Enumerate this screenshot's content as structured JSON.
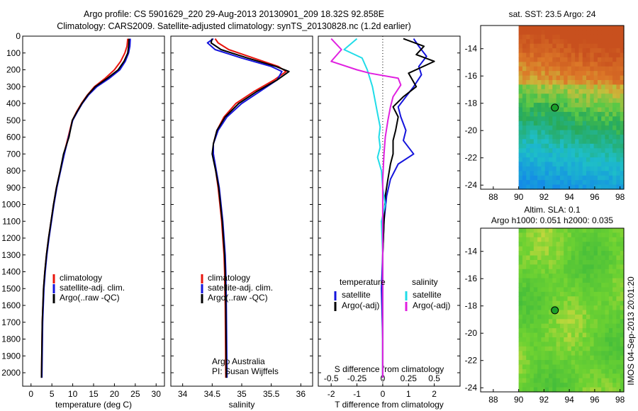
{
  "header": {
    "line1": "Argo profile: CS 5901629_220 29-Aug-2013 20130901_209 18.32S 92.858E",
    "line2": "Climatology: CARS2009. Satellite-adjusted climatology: synTS_20130828.nc (1.2d earlier)"
  },
  "colors": {
    "climatology": "#e8140c",
    "satellite": "#1414dc",
    "argo": "#000000",
    "cyan": "#20dce8",
    "magenta": "#e020e0",
    "marker": "#1a9e2a"
  },
  "chart_data": [
    {
      "type": "line",
      "id": "temperature",
      "xlabel": "temperature (deg C)",
      "xlim": [
        -2,
        32
      ],
      "xticks": [
        0,
        5,
        10,
        15,
        20,
        25,
        30
      ],
      "ylim": [
        0,
        2080
      ],
      "yticks": [
        0,
        100,
        200,
        300,
        400,
        500,
        600,
        700,
        800,
        900,
        1000,
        1100,
        1200,
        1300,
        1400,
        1500,
        1600,
        1700,
        1800,
        1900,
        2000
      ],
      "legend": [
        "climatology",
        "satellite-adj. clim.",
        "Argo(..raw -QC)"
      ],
      "series": [
        {
          "name": "climatology",
          "color_key": "climatology",
          "x": [
            23.2,
            23.0,
            22.5,
            21.5,
            20.0,
            17.8,
            15.2,
            13.5,
            12.1,
            10.9,
            9.9,
            8.9,
            7.9,
            7.0,
            6.1,
            5.4,
            4.8,
            4.2,
            3.7,
            3.3,
            3.0,
            2.7,
            2.5
          ],
          "y": [
            15,
            60,
            100,
            150,
            200,
            250,
            300,
            350,
            400,
            450,
            500,
            600,
            700,
            800,
            900,
            1000,
            1100,
            1200,
            1300,
            1400,
            1500,
            1700,
            2030
          ]
        },
        {
          "name": "satellite-adj. clim.",
          "color_key": "satellite",
          "x": [
            23.8,
            23.7,
            23.4,
            22.6,
            21.3,
            18.8,
            15.8,
            13.8,
            12.3,
            11.1,
            10.0,
            9.0,
            8.0,
            7.1,
            6.2,
            5.5,
            4.9,
            4.3,
            3.8,
            3.4,
            3.1,
            2.8,
            2.6
          ],
          "y": [
            15,
            60,
            100,
            150,
            200,
            250,
            300,
            350,
            400,
            450,
            500,
            600,
            700,
            800,
            900,
            1000,
            1100,
            1200,
            1300,
            1400,
            1500,
            1700,
            2030
          ]
        },
        {
          "name": "Argo(..raw -QC)",
          "color_key": "argo",
          "x": [
            23.5,
            23.4,
            23.2,
            22.3,
            20.9,
            18.3,
            15.4,
            13.6,
            12.2,
            11.0,
            9.9,
            9.1,
            7.8,
            7.0,
            6.1,
            5.4,
            4.8,
            4.2,
            3.7,
            3.3,
            3.0,
            2.7,
            2.5
          ],
          "y": [
            15,
            60,
            100,
            150,
            200,
            250,
            300,
            350,
            400,
            450,
            500,
            600,
            700,
            800,
            900,
            1000,
            1100,
            1200,
            1300,
            1400,
            1500,
            1700,
            2030
          ]
        }
      ]
    },
    {
      "type": "line",
      "id": "salinity",
      "xlabel": "salinity",
      "xlim": [
        33.8,
        36.2
      ],
      "xticks": [
        34,
        34.5,
        35,
        35.5,
        36
      ],
      "ylim": [
        0,
        2080
      ],
      "legend": [
        "climatology",
        "satellite-adj. clim.",
        "Argo(..raw -QC)"
      ],
      "annotation": [
        "Argo Australia",
        "PI: Susan Wijffels"
      ],
      "series": [
        {
          "name": "climatology",
          "color_key": "climatology",
          "x": [
            34.55,
            34.6,
            34.78,
            35.2,
            35.62,
            35.75,
            35.55,
            35.2,
            34.9,
            34.7,
            34.58,
            34.52,
            34.52,
            34.56,
            34.6,
            34.63,
            34.66,
            34.68,
            34.7,
            34.71,
            34.72,
            34.73
          ],
          "y": [
            15,
            40,
            80,
            130,
            180,
            210,
            260,
            330,
            400,
            480,
            560,
            640,
            700,
            800,
            900,
            1000,
            1100,
            1200,
            1300,
            1400,
            1600,
            2030
          ]
        },
        {
          "name": "satellite-adj. clim.",
          "color_key": "satellite",
          "x": [
            34.52,
            34.42,
            34.55,
            35.0,
            35.5,
            35.68,
            35.6,
            35.3,
            35.0,
            34.75,
            34.6,
            34.52,
            34.52,
            34.57,
            34.62,
            34.65,
            34.68,
            34.7,
            34.72,
            34.73,
            34.74,
            34.75
          ],
          "y": [
            15,
            40,
            80,
            130,
            180,
            210,
            260,
            330,
            400,
            480,
            560,
            640,
            700,
            800,
            900,
            1000,
            1100,
            1200,
            1300,
            1400,
            1600,
            2030
          ]
        },
        {
          "name": "Argo(..raw -QC)",
          "color_key": "argo",
          "x": [
            34.5,
            34.48,
            34.65,
            35.1,
            35.58,
            35.8,
            35.6,
            35.25,
            34.95,
            34.72,
            34.58,
            34.52,
            34.5,
            34.56,
            34.61,
            34.64,
            34.67,
            34.69,
            34.71,
            34.72,
            34.73,
            34.74
          ],
          "y": [
            15,
            40,
            80,
            130,
            180,
            210,
            260,
            330,
            400,
            480,
            560,
            640,
            700,
            800,
            900,
            1000,
            1100,
            1200,
            1300,
            1400,
            1600,
            2030
          ]
        }
      ]
    },
    {
      "type": "line",
      "id": "differences",
      "xlabel": "T difference from climatology",
      "xlabel_top": "S difference from climatology",
      "xlim": [
        -2.5,
        3.0
      ],
      "xticks": [
        -2,
        -1,
        0,
        1,
        2
      ],
      "top_ticks": [
        -0.5,
        -0.25,
        0,
        0.25,
        0.5
      ],
      "ylim": [
        0,
        2080
      ],
      "legend": {
        "left_title": "temperature",
        "right_title": "salinity",
        "left": [
          "satellite",
          "Argo(-adj)"
        ],
        "right": [
          "satellite",
          "Argo(-adj)"
        ]
      },
      "series": [
        {
          "name": "T satellite",
          "color_key": "satellite",
          "x": [
            1.2,
            1.4,
            1.7,
            1.4,
            1.5,
            1.2,
            0.9,
            0.6,
            0.7,
            0.9,
            0.8,
            1.2,
            0.6,
            0.3,
            0.15,
            0.05,
            0,
            -0.05,
            0,
            0
          ],
          "y": [
            15,
            60,
            120,
            180,
            230,
            300,
            360,
            420,
            480,
            560,
            620,
            700,
            760,
            850,
            950,
            1100,
            1300,
            1500,
            1800,
            2030
          ]
        },
        {
          "name": "T Argo(-adj)",
          "color_key": "argo",
          "x": [
            0.8,
            1.6,
            1.3,
            2.0,
            1.0,
            1.3,
            0.8,
            0.4,
            0.6,
            0.5,
            0.4,
            0.4,
            0.3,
            0.2,
            0.1,
            0.05,
            0,
            0,
            0,
            0
          ],
          "y": [
            15,
            60,
            110,
            150,
            220,
            300,
            360,
            420,
            480,
            560,
            620,
            700,
            760,
            850,
            950,
            1100,
            1300,
            1500,
            1800,
            2030
          ]
        },
        {
          "name": "S satellite",
          "color_key": "cyan",
          "x": [
            -1.0,
            -1.5,
            -0.8,
            -0.6,
            -0.4,
            -0.3,
            -0.2,
            -0.1,
            -0.15,
            -0.1,
            -0.2,
            -0.05,
            0.0,
            0.1,
            -0.05,
            0,
            0,
            0
          ],
          "y": [
            15,
            80,
            130,
            200,
            300,
            380,
            460,
            540,
            600,
            660,
            720,
            800,
            900,
            1000,
            1100,
            1300,
            1600,
            2030
          ]
        },
        {
          "name": "S Argo(-adj)",
          "color_key": "magenta",
          "x": [
            -2.0,
            -1.6,
            -2.0,
            -1.0,
            -0.5,
            0.6,
            0.7,
            0.4,
            0.3,
            0.2,
            0.1,
            0.05,
            0,
            0,
            0
          ],
          "y": [
            15,
            80,
            150,
            200,
            220,
            250,
            290,
            360,
            420,
            500,
            600,
            700,
            850,
            1000,
            2030
          ]
        }
      ]
    },
    {
      "type": "heatmap",
      "id": "sst_map",
      "title": "sat. SST: 23.5 Argo: 24",
      "xlim": [
        87,
        98.3
      ],
      "ylim": [
        -24.3,
        -12.3
      ],
      "xticks": [
        88,
        90,
        92,
        94,
        96,
        98
      ],
      "yticks": [
        -14,
        -16,
        -18,
        -20,
        -22,
        -24
      ],
      "data_lon": [
        90,
        98.3
      ],
      "argo_position": [
        92.858,
        -18.32
      ]
    },
    {
      "type": "heatmap",
      "id": "sla_map",
      "title": "Altim. SLA: 0.1",
      "subtitle": "Argo h1000: 0.051 h2000: 0.035",
      "xlim": [
        87,
        98.3
      ],
      "ylim": [
        -24.3,
        -12.3
      ],
      "xticks": [
        88,
        90,
        92,
        94,
        96,
        98
      ],
      "yticks": [
        -14,
        -16,
        -18,
        -20,
        -22,
        -24
      ],
      "data_lon": [
        90,
        98.3
      ],
      "argo_position": [
        92.858,
        -18.32
      ]
    }
  ],
  "footer": {
    "stamp": "IMOS 04-Sep-2013 20:01:20"
  }
}
